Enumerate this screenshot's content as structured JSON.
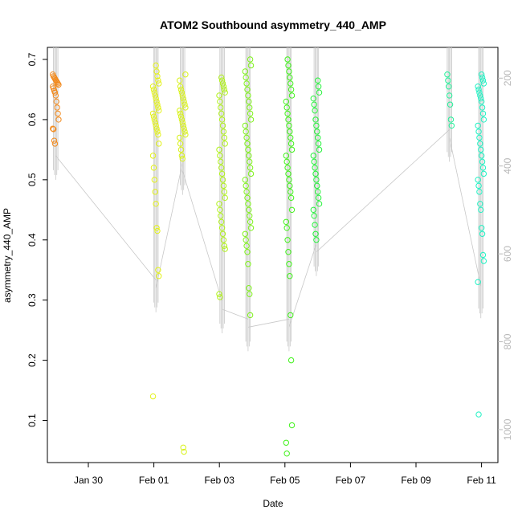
{
  "chart_data": {
    "type": "scatter",
    "title": "ATOM2 Southbound asymmetry_440_AMP",
    "xlabel": "Date",
    "ylabel": "asymmetry_440_AMP",
    "xlim": [
      "2016-01-28T18:00",
      "2016-02-11T12:00"
    ],
    "ylim": [
      0.03,
      0.72
    ],
    "x_ticks": [
      "Jan 30",
      "Feb 01",
      "Feb 03",
      "Feb 05",
      "Feb 07",
      "Feb 09",
      "Feb 11"
    ],
    "x_tick_dates": [
      "2016-01-30",
      "2016-02-01",
      "2016-02-03",
      "2016-02-05",
      "2016-02-07",
      "2016-02-09",
      "2016-02-11"
    ],
    "y_ticks": [
      0.1,
      0.2,
      0.3,
      0.4,
      0.5,
      0.6,
      0.7
    ],
    "right_axis": {
      "ticks": [
        200,
        400,
        600,
        800,
        1000
      ],
      "range": [
        130,
        1075
      ],
      "inverted": true,
      "color": "#b8b8b8",
      "note_line_color": "#c8c8c8"
    },
    "grid": false,
    "marker": "open-circle",
    "clusters": [
      {
        "t": "2016-01-29T00:05",
        "color": "#f28a1d",
        "values": [
          0.675,
          0.672,
          0.67,
          0.668,
          0.666,
          0.664,
          0.662,
          0.66,
          0.658,
          0.655,
          0.652,
          0.648,
          0.645,
          0.64,
          0.63,
          0.62,
          0.61,
          0.6,
          0.585,
          0.584,
          0.565,
          0.56
        ]
      },
      {
        "t": "2016-02-01T01:30",
        "color": "#e3f21a",
        "values": [
          0.69,
          0.68,
          0.672,
          0.665,
          0.66,
          0.655,
          0.65,
          0.645,
          0.64,
          0.635,
          0.63,
          0.625,
          0.62,
          0.615,
          0.61,
          0.605,
          0.6,
          0.595,
          0.59,
          0.585,
          0.58,
          0.575,
          0.56,
          0.54,
          0.52,
          0.5,
          0.48,
          0.46,
          0.42,
          0.415,
          0.35,
          0.34,
          0.14
        ]
      },
      {
        "t": "2016-02-01T21:00",
        "color": "#d8f21a",
        "values": [
          0.675,
          0.665,
          0.655,
          0.65,
          0.645,
          0.64,
          0.635,
          0.63,
          0.625,
          0.62,
          0.615,
          0.61,
          0.605,
          0.6,
          0.595,
          0.59,
          0.585,
          0.58,
          0.575,
          0.57,
          0.56,
          0.55,
          0.54,
          0.535,
          0.055,
          0.048
        ]
      },
      {
        "t": "2016-02-03T02:00",
        "color": "#b0f21a",
        "values": [
          0.67,
          0.665,
          0.66,
          0.655,
          0.65,
          0.645,
          0.64,
          0.63,
          0.62,
          0.61,
          0.6,
          0.59,
          0.58,
          0.57,
          0.56,
          0.55,
          0.54,
          0.53,
          0.52,
          0.51,
          0.5,
          0.49,
          0.48,
          0.47,
          0.46,
          0.45,
          0.44,
          0.43,
          0.42,
          0.41,
          0.4,
          0.39,
          0.385,
          0.31,
          0.305
        ]
      },
      {
        "t": "2016-02-03T21:00",
        "color": "#7ef21a",
        "values": [
          0.7,
          0.69,
          0.68,
          0.67,
          0.66,
          0.65,
          0.64,
          0.63,
          0.62,
          0.61,
          0.6,
          0.59,
          0.58,
          0.57,
          0.56,
          0.55,
          0.54,
          0.53,
          0.52,
          0.51,
          0.5,
          0.49,
          0.48,
          0.47,
          0.46,
          0.45,
          0.44,
          0.43,
          0.42,
          0.41,
          0.4,
          0.39,
          0.38,
          0.36,
          0.32,
          0.31,
          0.275
        ]
      },
      {
        "t": "2016-02-05T03:00",
        "color": "#40f21a",
        "values": [
          0.7,
          0.69,
          0.68,
          0.67,
          0.66,
          0.65,
          0.64,
          0.63,
          0.62,
          0.61,
          0.6,
          0.59,
          0.58,
          0.57,
          0.56,
          0.55,
          0.54,
          0.53,
          0.52,
          0.51,
          0.5,
          0.49,
          0.48,
          0.47,
          0.45,
          0.43,
          0.42,
          0.4,
          0.38,
          0.36,
          0.34,
          0.275,
          0.2,
          0.092,
          0.063,
          0.045
        ]
      },
      {
        "t": "2016-02-05T23:00",
        "color": "#24f23a",
        "values": [
          0.665,
          0.655,
          0.645,
          0.635,
          0.625,
          0.615,
          0.6,
          0.59,
          0.58,
          0.57,
          0.56,
          0.55,
          0.54,
          0.53,
          0.52,
          0.51,
          0.5,
          0.49,
          0.48,
          0.47,
          0.46,
          0.45,
          0.44,
          0.425,
          0.41,
          0.4
        ]
      },
      {
        "t": "2016-02-10T00:30",
        "color": "#22f29a",
        "values": [
          0.675,
          0.665,
          0.655,
          0.64,
          0.625,
          0.6,
          0.59
        ]
      },
      {
        "t": "2016-02-10T23:30",
        "color": "#1ff2c3",
        "values": [
          0.675,
          0.67,
          0.665,
          0.66,
          0.655,
          0.65,
          0.645,
          0.64,
          0.635,
          0.63,
          0.62,
          0.61,
          0.6,
          0.59,
          0.58,
          0.57,
          0.56,
          0.55,
          0.54,
          0.53,
          0.52,
          0.51,
          0.5,
          0.49,
          0.48,
          0.46,
          0.45,
          0.42,
          0.41,
          0.375,
          0.365,
          0.33,
          0.11
        ]
      }
    ]
  }
}
